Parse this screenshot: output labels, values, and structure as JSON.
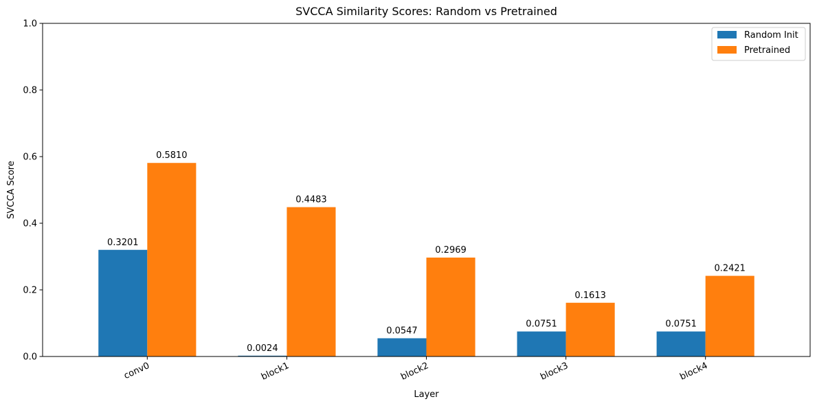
{
  "chart_data": {
    "type": "bar",
    "title": "SVCCA Similarity Scores: Random vs Pretrained",
    "xlabel": "Layer",
    "ylabel": "SVCCA Score",
    "ylim": [
      0,
      1
    ],
    "yticks": [
      0.0,
      0.2,
      0.4,
      0.6,
      0.8,
      1.0
    ],
    "ytick_labels": [
      "0.0",
      "0.2",
      "0.4",
      "0.6",
      "0.8",
      "1.0"
    ],
    "categories": [
      "conv0",
      "block1",
      "block2",
      "block3",
      "block4"
    ],
    "grid": false,
    "legend_position": "top-right",
    "series": [
      {
        "name": "Random Init",
        "color": "#1f77b4",
        "values": [
          0.3201,
          0.0024,
          0.0547,
          0.0751,
          0.0751
        ],
        "labels": [
          "0.3201",
          "0.0024",
          "0.0547",
          "0.0751",
          "0.0751"
        ]
      },
      {
        "name": "Pretrained",
        "color": "#ff7f0e",
        "values": [
          0.581,
          0.4483,
          0.2969,
          0.1613,
          0.2421
        ],
        "labels": [
          "0.5810",
          "0.4483",
          "0.2969",
          "0.1613",
          "0.2421"
        ]
      }
    ]
  }
}
